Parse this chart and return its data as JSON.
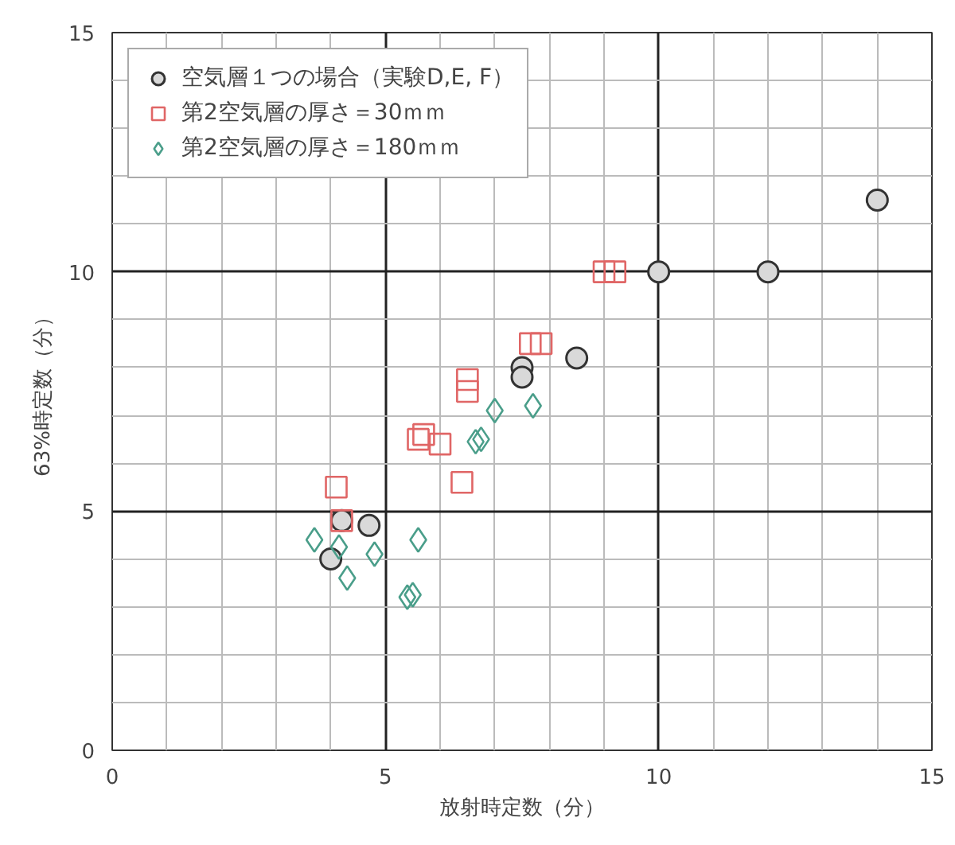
{
  "chart_data": {
    "type": "scatter",
    "xlabel": "放射時定数（分）",
    "ylabel": "63%時定数（分）",
    "xlim": [
      0,
      15
    ],
    "ylim": [
      0,
      15
    ],
    "xticks": [
      0,
      {
        "value": 1,
        "label": null
      },
      {
        "value": 2,
        "label": null
      },
      {
        "value": 3,
        "label": null
      },
      {
        "value": 4,
        "label": null
      },
      5,
      {
        "value": 6,
        "label": null
      },
      {
        "value": 7,
        "label": null
      },
      {
        "value": 8,
        "label": null
      },
      {
        "value": 9,
        "label": null
      },
      10,
      {
        "value": 11,
        "label": null
      },
      {
        "value": 12,
        "label": null
      },
      {
        "value": 13,
        "label": null
      },
      {
        "value": 14,
        "label": null
      },
      15
    ],
    "yticks": [
      0,
      {
        "value": 1,
        "label": null
      },
      {
        "value": 2,
        "label": null
      },
      {
        "value": 3,
        "label": null
      },
      {
        "value": 4,
        "label": null
      },
      5,
      {
        "value": 6,
        "label": null
      },
      {
        "value": 7,
        "label": null
      },
      {
        "value": 8,
        "label": null
      },
      {
        "value": 9,
        "label": null
      },
      10,
      {
        "value": 11,
        "label": null
      },
      {
        "value": 12,
        "label": null
      },
      {
        "value": 13,
        "label": null
      },
      {
        "value": 14,
        "label": null
      },
      15
    ],
    "grid": true,
    "legend": "top left",
    "series": [
      {
        "name": "空気層１つの場合（実験D,E, F）",
        "color": "#d9d9d9",
        "marker": "circle",
        "x": [
          4.0,
          4.2,
          4.7,
          7.5,
          7.5,
          8.5,
          10,
          12,
          14
        ],
        "values": [
          4.0,
          4.8,
          4.7,
          8.0,
          7.8,
          8.2,
          10,
          10,
          11.5
        ]
      },
      {
        "name": "第2空気層の厚さ＝30ｍｍ",
        "color": "#e06666",
        "marker": "square",
        "x": [
          4.1,
          4.2,
          5.6,
          5.7,
          6.0,
          6.4,
          6.5,
          6.5,
          7.65,
          7.85,
          9.0,
          9.2
        ],
        "values": [
          5.5,
          4.8,
          6.5,
          6.6,
          6.4,
          5.6,
          7.75,
          7.5,
          8.5,
          8.5,
          10,
          10
        ]
      },
      {
        "name": "第2空気層の厚さ＝180ｍｍ",
        "color": "#4a9e8a",
        "marker": "diamond",
        "x": [
          3.7,
          4.15,
          4.3,
          4.8,
          5.6,
          5.4,
          5.5,
          6.65,
          6.75,
          7.0,
          7.7
        ],
        "values": [
          4.4,
          4.25,
          3.6,
          4.1,
          4.4,
          3.2,
          3.25,
          6.45,
          6.5,
          7.1,
          7.2
        ]
      }
    ]
  }
}
